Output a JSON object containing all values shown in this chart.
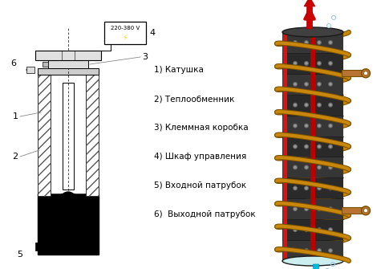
{
  "bg_color": "#ffffff",
  "legend_items": [
    "1) Катушка",
    "2) Теплообменник",
    "3) Клеммная коробка",
    "4) Шкаф управления",
    "5) Входной патрубок",
    "6)  Выходной патрубок"
  ],
  "voltage_label": "220-380 V",
  "label_4": "4",
  "label_3": "3",
  "label_1": "1",
  "label_2": "2",
  "label_5": "5",
  "label_6": "6"
}
